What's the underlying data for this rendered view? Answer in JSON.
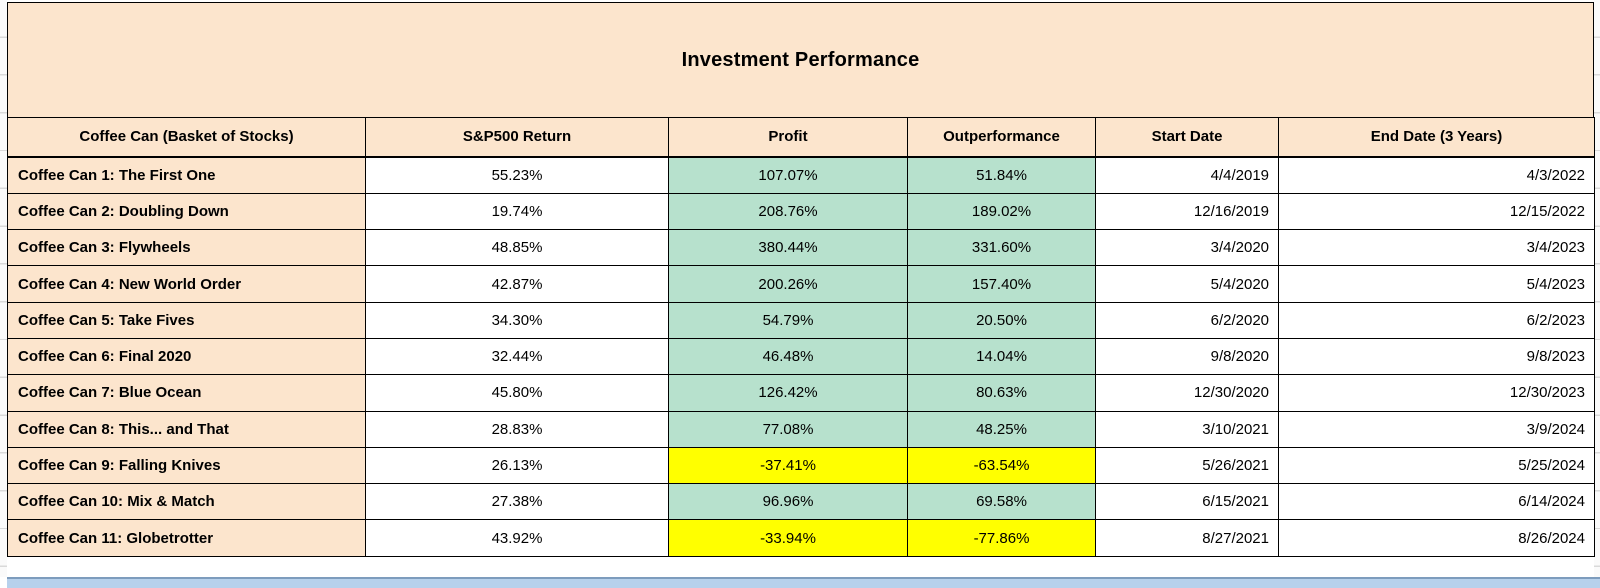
{
  "title": "Investment Performance",
  "columns": [
    "Coffee Can (Basket of Stocks)",
    "S&P500 Return",
    "Profit",
    "Outperformance",
    "Start Date",
    "End Date (3 Years)"
  ],
  "rows": [
    {
      "name": "Coffee Can 1: The First One",
      "sp500": "55.23%",
      "profit": "107.07%",
      "outperf": "51.84%",
      "start": "4/4/2019",
      "end": "4/3/2022",
      "highlight": "green"
    },
    {
      "name": "Coffee Can 2: Doubling Down",
      "sp500": "19.74%",
      "profit": "208.76%",
      "outperf": "189.02%",
      "start": "12/16/2019",
      "end": "12/15/2022",
      "highlight": "green"
    },
    {
      "name": "Coffee Can 3: Flywheels",
      "sp500": "48.85%",
      "profit": "380.44%",
      "outperf": "331.60%",
      "start": "3/4/2020",
      "end": "3/4/2023",
      "highlight": "green"
    },
    {
      "name": "Coffee Can 4: New World Order",
      "sp500": "42.87%",
      "profit": "200.26%",
      "outperf": "157.40%",
      "start": "5/4/2020",
      "end": "5/4/2023",
      "highlight": "green"
    },
    {
      "name": "Coffee Can 5: Take Fives",
      "sp500": "34.30%",
      "profit": "54.79%",
      "outperf": "20.50%",
      "start": "6/2/2020",
      "end": "6/2/2023",
      "highlight": "green"
    },
    {
      "name": "Coffee Can 6: Final 2020",
      "sp500": "32.44%",
      "profit": "46.48%",
      "outperf": "14.04%",
      "start": "9/8/2020",
      "end": "9/8/2023",
      "highlight": "green"
    },
    {
      "name": "Coffee Can 7: Blue Ocean",
      "sp500": "45.80%",
      "profit": "126.42%",
      "outperf": "80.63%",
      "start": "12/30/2020",
      "end": "12/30/2023",
      "highlight": "green"
    },
    {
      "name": "Coffee Can 8: This... and That",
      "sp500": "28.83%",
      "profit": "77.08%",
      "outperf": "48.25%",
      "start": "3/10/2021",
      "end": "3/9/2024",
      "highlight": "green"
    },
    {
      "name": "Coffee Can 9: Falling Knives",
      "sp500": "26.13%",
      "profit": "-37.41%",
      "outperf": "-63.54%",
      "start": "5/26/2021",
      "end": "5/25/2024",
      "highlight": "yellow"
    },
    {
      "name": "Coffee Can 10: Mix & Match",
      "sp500": "27.38%",
      "profit": "96.96%",
      "outperf": "69.58%",
      "start": "6/15/2021",
      "end": "6/14/2024",
      "highlight": "green"
    },
    {
      "name": "Coffee Can 11: Globetrotter",
      "sp500": "43.92%",
      "profit": "-33.94%",
      "outperf": "-77.86%",
      "start": "8/27/2021",
      "end": "8/26/2024",
      "highlight": "yellow"
    }
  ],
  "colors": {
    "header_bg": "#fce5cd",
    "positive_bg": "#b7e1cd",
    "negative_bg": "#ffff00",
    "selection_strip": "#b7d1ec"
  }
}
